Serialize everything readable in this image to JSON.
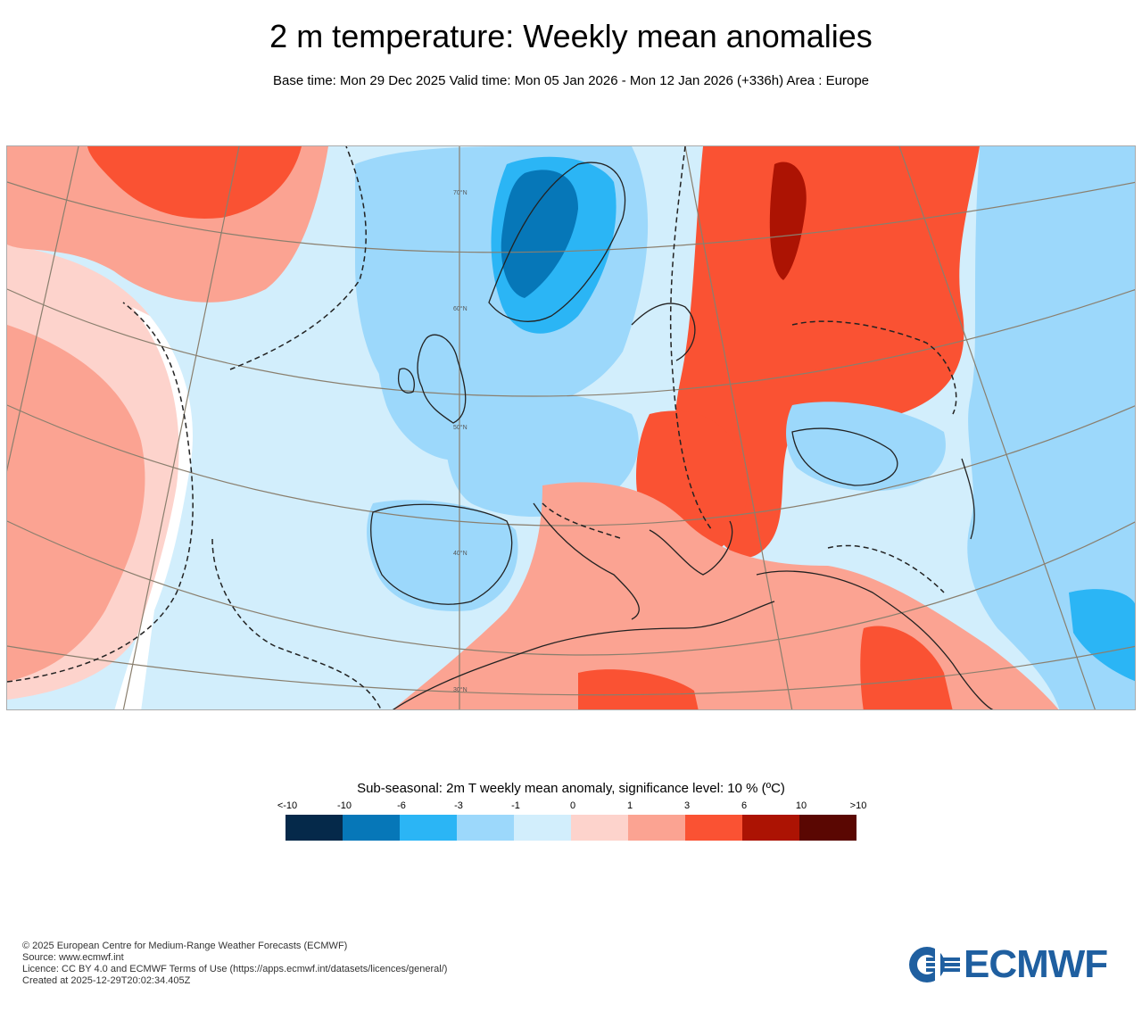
{
  "header": {
    "title": "2 m temperature: Weekly mean anomalies",
    "subtitle": "Base time: Mon 29 Dec 2025 Valid time: Mon 05 Jan 2026 - Mon 12 Jan 2026 (+336h) Area : Europe"
  },
  "map": {
    "area": "Europe",
    "graticule_labels": [
      "70°N",
      "60°N",
      "50°N",
      "40°N",
      "30°N"
    ]
  },
  "legend": {
    "title": "Sub-seasonal: 2m T weekly mean anomaly, significance level: 10 % (ºC)",
    "ticks": [
      "<-10",
      "-10",
      "-6",
      "-3",
      "-1",
      "0",
      "1",
      "3",
      "6",
      "10",
      ">10"
    ],
    "colors": [
      "#05294a",
      "#0677b8",
      "#2bb5f5",
      "#9cd8fb",
      "#d2eefc",
      "#fdd3cc",
      "#fba392",
      "#fa5233",
      "#ac1303",
      "#5a0702"
    ]
  },
  "footer": {
    "copyright": "© 2025 European Centre for Medium-Range Weather Forecasts (ECMWF)",
    "source": "Source: www.ecmwf.int",
    "licence": "Licence: CC BY 4.0 and ECMWF Terms of Use (https://apps.ecmwf.int/datasets/licences/general/)",
    "created": "Created at 2025-12-29T20:02:34.405Z"
  },
  "logo": {
    "text": "ECMWF",
    "color": "#1f5fa0"
  }
}
